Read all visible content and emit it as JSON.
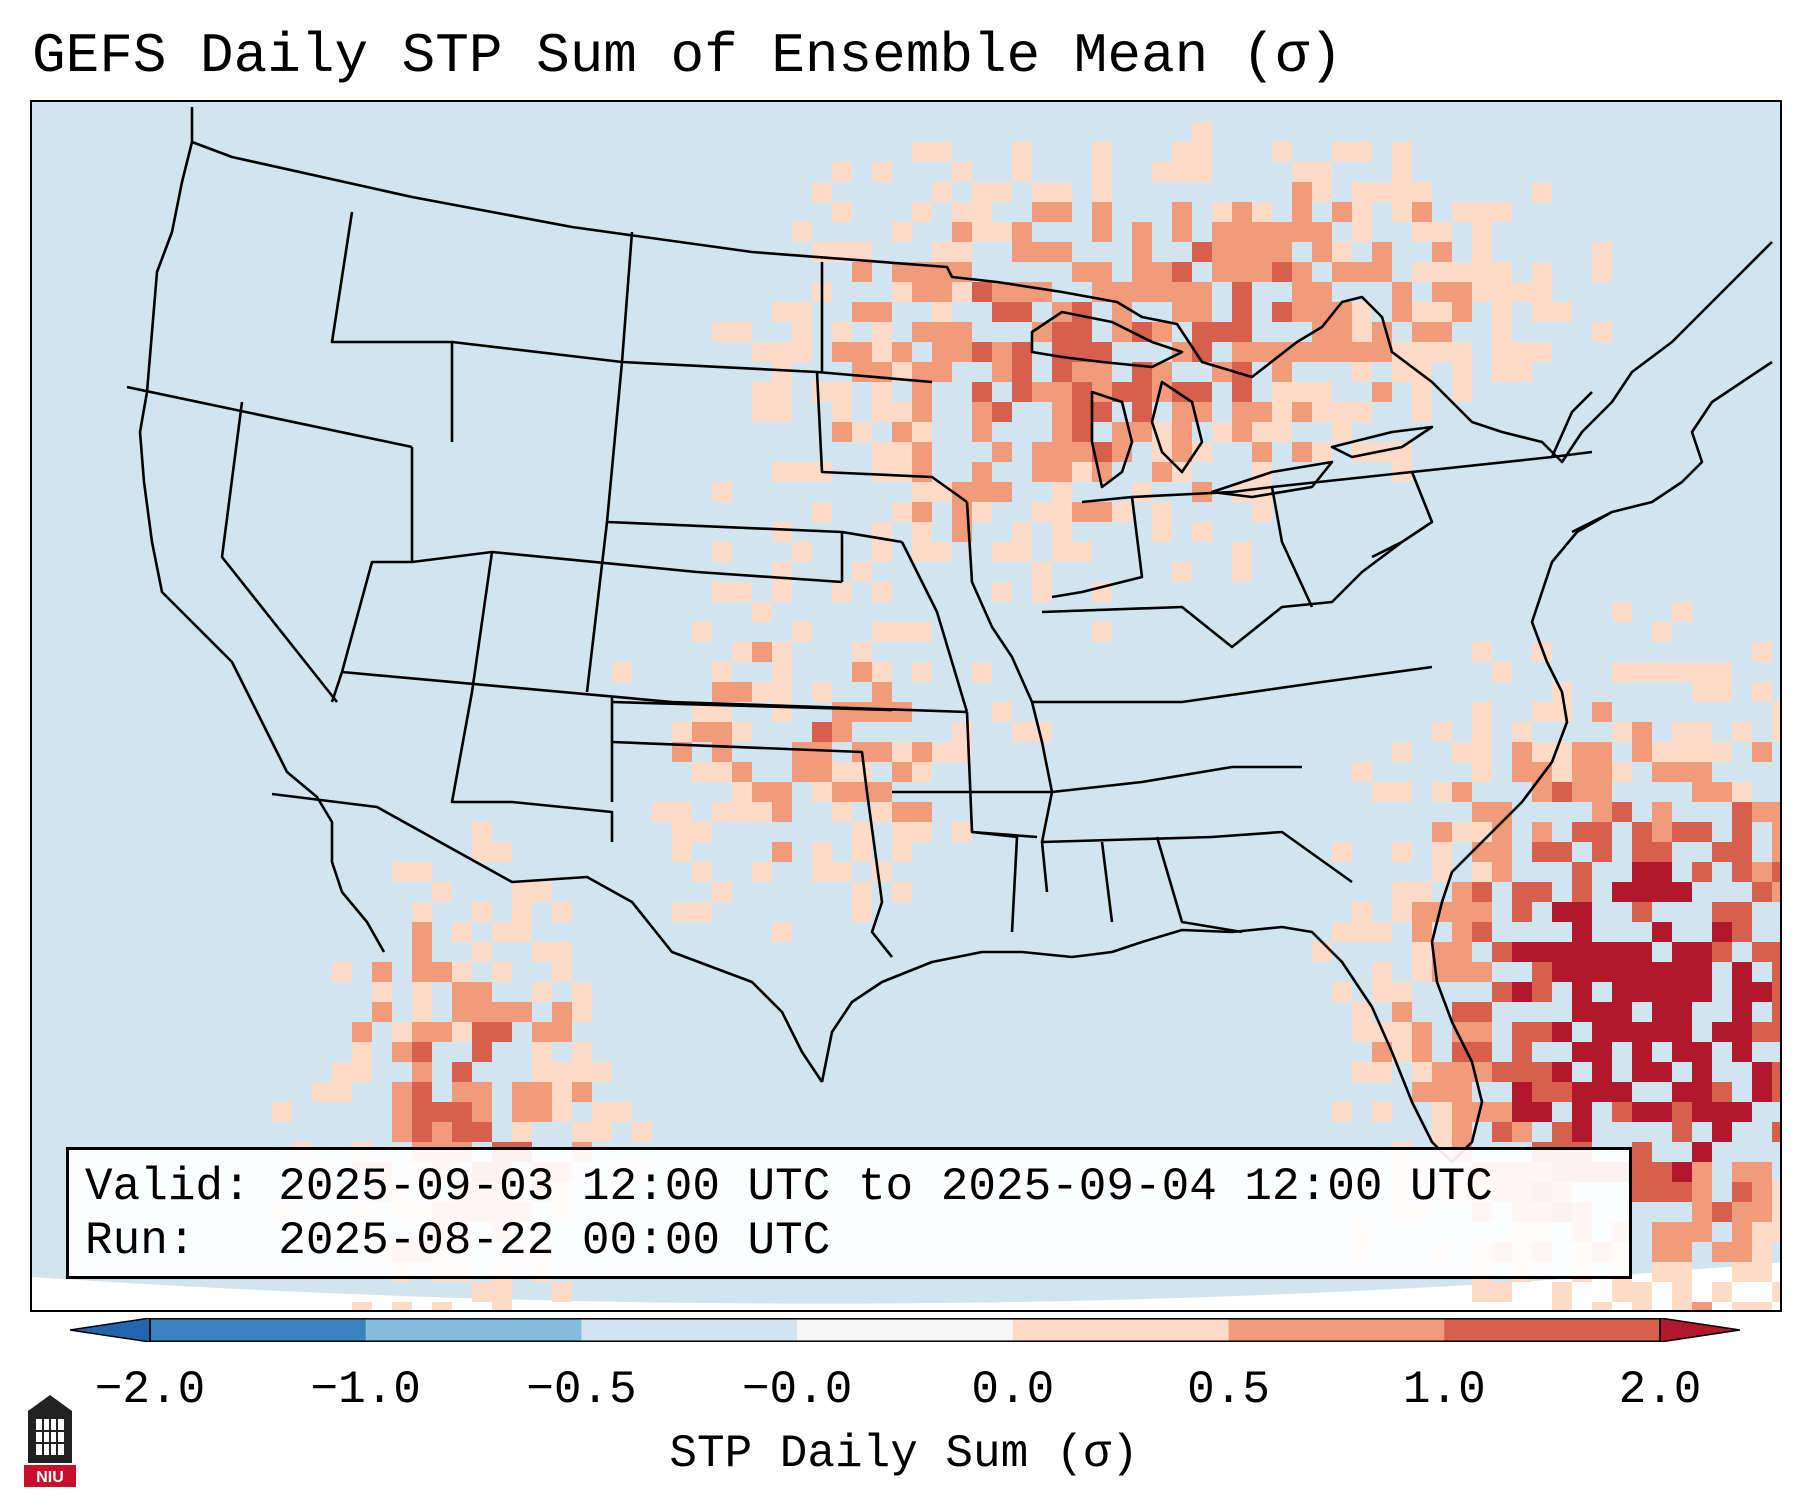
{
  "title": "GEFS Daily STP Sum of Ensemble Mean (σ)",
  "info": {
    "valid_label": "Valid:",
    "valid_value": "2025-09-03 12:00 UTC to 2025-09-04 12:00 UTC",
    "run_label": "Run:",
    "run_value": "2025-08-22 00:00 UTC"
  },
  "colorbar": {
    "label": "STP Daily Sum (σ)",
    "ticks": [
      "−2.0",
      "−1.0",
      "−0.5",
      "−0.0",
      "0.0",
      "0.5",
      "1.0",
      "2.0"
    ],
    "colors": [
      "#3a82bd",
      "#84bcdb",
      "#d1e5f0",
      "#f7f7f7",
      "#fddbc7",
      "#f09c7b",
      "#d6604d",
      "#b2182b"
    ],
    "over_color": "#b2182b",
    "under_color": "#2166ac"
  },
  "logo": {
    "text": "NIU",
    "color": "#c8102e"
  },
  "map": {
    "region": "CONUS",
    "background_color": "#d1e5f0",
    "offmap_color": "#ffffff"
  }
}
